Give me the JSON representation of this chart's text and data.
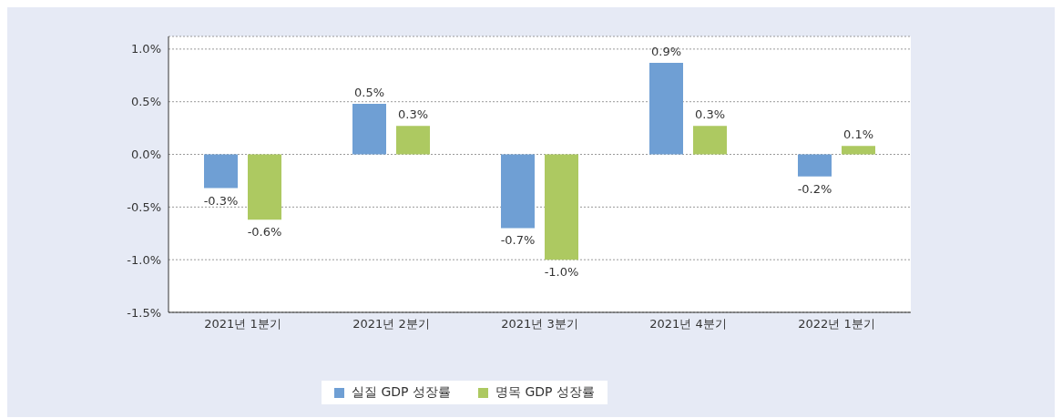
{
  "chart_data": {
    "type": "bar",
    "categories": [
      "2021년 1분기",
      "2021년 2분기",
      "2021년 3분기",
      "2021년 4분기",
      "2022년 1분기"
    ],
    "series": [
      {
        "name": "실질 GDP 성장률",
        "color": "#6f9fd4",
        "values": [
          -0.32,
          0.48,
          -0.7,
          0.87,
          -0.21
        ],
        "value_labels": [
          "-0.3%",
          "0.5%",
          "-0.7%",
          "0.9%",
          "-0.2%"
        ]
      },
      {
        "name": "명목 GDP 성장률",
        "color": "#adc961",
        "values": [
          -0.62,
          0.27,
          -1.0,
          0.27,
          0.08
        ],
        "value_labels": [
          "-0.6%",
          "0.3%",
          "-1.0%",
          "0.3%",
          "0.1%"
        ]
      }
    ],
    "ylim": [
      -1.5,
      1.12
    ],
    "yticks": [
      {
        "value": -1.5,
        "label": "-1.5%"
      },
      {
        "value": -1.0,
        "label": "-1.0%"
      },
      {
        "value": -0.5,
        "label": "-0.5%"
      },
      {
        "value": 0,
        "label": "0.0%"
      },
      {
        "value": 0.5,
        "label": "0.5%"
      },
      {
        "value": 1.0,
        "label": "1.0%"
      }
    ],
    "grid": "y",
    "legend": "bottom"
  }
}
